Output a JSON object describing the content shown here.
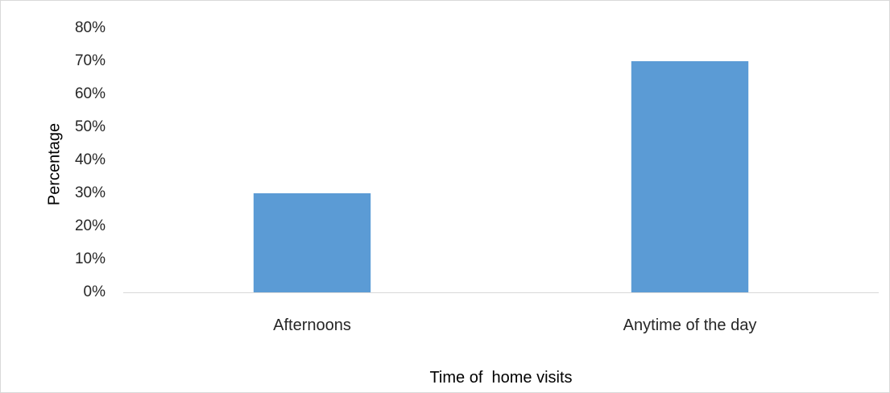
{
  "chart_data": {
    "type": "bar",
    "categories": [
      "Afternoons",
      "Anytime of the day"
    ],
    "values": [
      30,
      70
    ],
    "title": "",
    "xlabel": "Time of  home visits",
    "ylabel": "Percentage",
    "ylim": [
      0,
      80
    ],
    "y_ticks": [
      "0%",
      "10%",
      "20%",
      "30%",
      "40%",
      "50%",
      "60%",
      "70%",
      "80%"
    ],
    "grid": false,
    "bar_color": "#5b9bd5",
    "legend": "none"
  }
}
